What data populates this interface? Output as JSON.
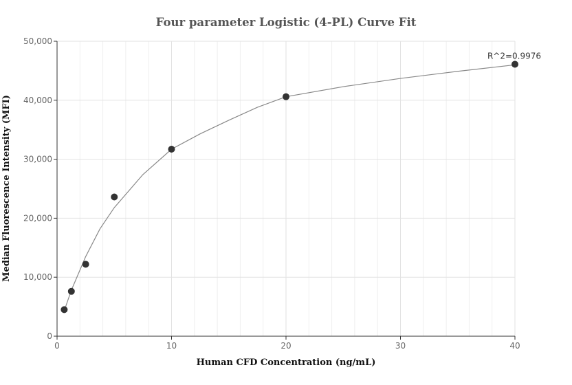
{
  "chart_data": {
    "type": "scatter",
    "title": "Four parameter Logistic (4-PL) Curve Fit",
    "xlabel": "Human CFD Concentration (ng/mL)",
    "ylabel": "Median Fluorescence Intensity (MFI)",
    "xlim": [
      0,
      40
    ],
    "ylim": [
      0,
      50000
    ],
    "x_ticks": [
      0,
      10,
      20,
      30,
      40
    ],
    "x_tick_labels": [
      "0",
      "10",
      "20",
      "30",
      "40"
    ],
    "y_ticks": [
      0,
      10000,
      20000,
      30000,
      40000,
      50000
    ],
    "y_tick_labels": [
      "0",
      "10,000",
      "20,000",
      "30,000",
      "40,000",
      "50,000"
    ],
    "grid": true,
    "series": [
      {
        "points": [
          {
            "x": 0.625,
            "y": 4500
          },
          {
            "x": 1.25,
            "y": 7600
          },
          {
            "x": 2.5,
            "y": 12200
          },
          {
            "x": 5,
            "y": 23600
          },
          {
            "x": 10,
            "y": 31700
          },
          {
            "x": 20,
            "y": 40600
          },
          {
            "x": 40,
            "y": 46100
          }
        ],
        "color": "#333333"
      }
    ],
    "fit_curve": {
      "model": "4PL",
      "color": "#888888",
      "points": [
        {
          "x": 0.625,
          "y": 4300
        },
        {
          "x": 1.25,
          "y": 7800
        },
        {
          "x": 2.5,
          "y": 13500
        },
        {
          "x": 3.75,
          "y": 18200
        },
        {
          "x": 5,
          "y": 21800
        },
        {
          "x": 7.5,
          "y": 27400
        },
        {
          "x": 10,
          "y": 31700
        },
        {
          "x": 12.5,
          "y": 34300
        },
        {
          "x": 15,
          "y": 36600
        },
        {
          "x": 17.5,
          "y": 38800
        },
        {
          "x": 20,
          "y": 40600
        },
        {
          "x": 25,
          "y": 42300
        },
        {
          "x": 30,
          "y": 43700
        },
        {
          "x": 35,
          "y": 44900
        },
        {
          "x": 40,
          "y": 46000
        }
      ]
    },
    "annotation": {
      "text": "R^2=0.9976",
      "x": 40,
      "y": 46100
    }
  }
}
